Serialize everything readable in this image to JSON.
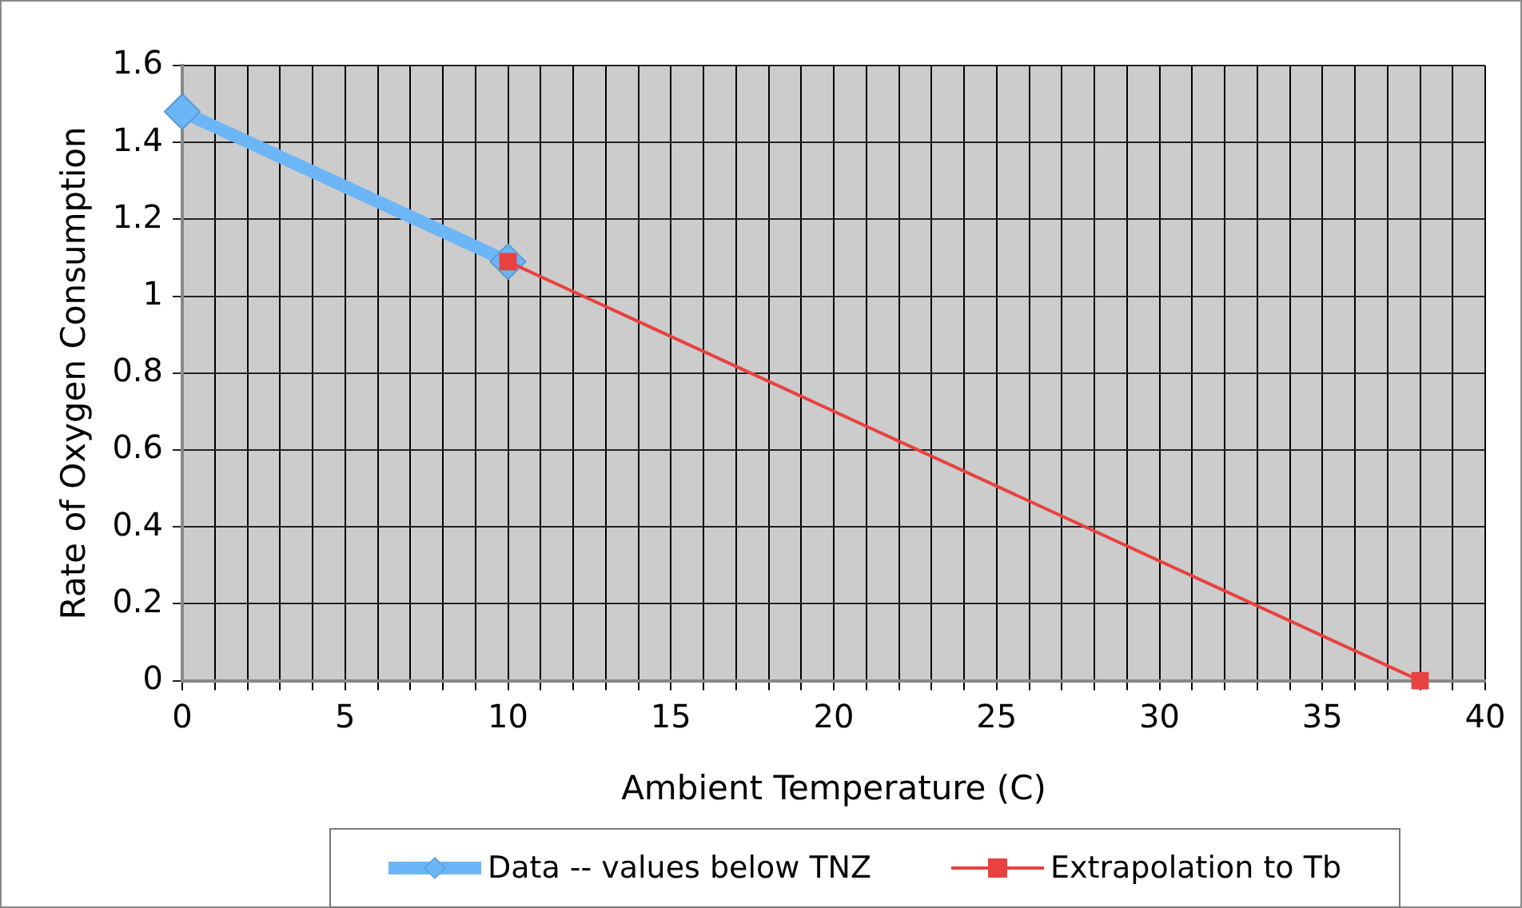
{
  "chart_data": {
    "type": "line",
    "xlabel": "Ambient Temperature (C)",
    "ylabel": "Rate of Oxygen Consumption",
    "xlim": [
      0,
      40
    ],
    "xticks": [
      0,
      {
        "value": 1,
        "label": null
      },
      {
        "value": 2,
        "label": null
      },
      {
        "value": 3,
        "label": null
      },
      {
        "value": 4,
        "label": null
      },
      5,
      {
        "value": 6,
        "label": null
      },
      {
        "value": 7,
        "label": null
      },
      {
        "value": 8,
        "label": null
      },
      {
        "value": 9,
        "label": null
      },
      10,
      {
        "value": 11,
        "label": null
      },
      {
        "value": 12,
        "label": null
      },
      {
        "value": 13,
        "label": null
      },
      {
        "value": 14,
        "label": null
      },
      15,
      {
        "value": 16,
        "label": null
      },
      {
        "value": 17,
        "label": null
      },
      {
        "value": 18,
        "label": null
      },
      {
        "value": 19,
        "label": null
      },
      20,
      {
        "value": 21,
        "label": null
      },
      {
        "value": 22,
        "label": null
      },
      {
        "value": 23,
        "label": null
      },
      {
        "value": 24,
        "label": null
      },
      25,
      {
        "value": 26,
        "label": null
      },
      {
        "value": 27,
        "label": null
      },
      {
        "value": 28,
        "label": null
      },
      {
        "value": 29,
        "label": null
      },
      30,
      {
        "value": 31,
        "label": null
      },
      {
        "value": 32,
        "label": null
      },
      {
        "value": 33,
        "label": null
      },
      {
        "value": 34,
        "label": null
      },
      35,
      {
        "value": 36,
        "label": null
      },
      {
        "value": 37,
        "label": null
      },
      {
        "value": 38,
        "label": null
      },
      {
        "value": 39,
        "label": null
      },
      40
    ],
    "ylim": [
      0,
      1.6
    ],
    "yticks": [
      0,
      0.2,
      0.4,
      0.6,
      0.8,
      1,
      1.2,
      1.4,
      1.6
    ],
    "grid": true,
    "legend": "bottom",
    "series": [
      {
        "name": "Data -- values below TNZ",
        "color": "#6cb6f7",
        "x": [
          0,
          10
        ],
        "values": [
          1.48,
          1.09
        ],
        "marker": "diamond"
      },
      {
        "name": "Extrapolation to Tb",
        "color": "#e8413f",
        "x": [
          10,
          38
        ],
        "values": [
          1.09,
          0
        ],
        "marker": "square"
      }
    ]
  }
}
